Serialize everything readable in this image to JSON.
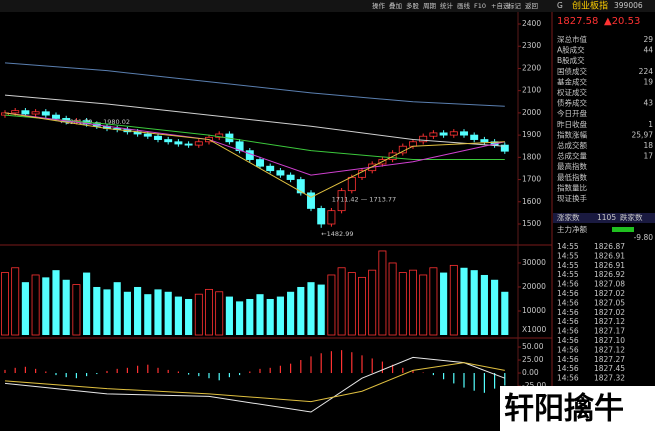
{
  "toolbar": [
    "操作",
    "叠加",
    "多股",
    "周期",
    "统计",
    "画线",
    "F10",
    "+自选",
    "标记",
    "返回"
  ],
  "header": {
    "badge": "G",
    "name": "创业板指",
    "code": "399006",
    "price": "1827.58",
    "change": "▲20.53"
  },
  "panel": {
    "rows": [
      {
        "label": "深总市值",
        "value": "29"
      },
      {
        "label": "A股成交",
        "value": "44"
      },
      {
        "label": "B股成交"
      },
      {
        "label": "国债成交",
        "value": "224"
      },
      {
        "label": "基金成交",
        "value": "19"
      },
      {
        "label": "权证成交"
      },
      {
        "label": "债券成交",
        "value": "43"
      },
      {
        "label": "今日开盘"
      },
      {
        "label": "昨日收盘",
        "value": "1"
      },
      {
        "label": "指数涨幅",
        "value": "25,97"
      },
      {
        "label": "总成交额",
        "value": "18"
      },
      {
        "label": "总成交量",
        "value": "17"
      },
      {
        "label": "最高指数"
      },
      {
        "label": "最低指数"
      },
      {
        "label": "指数量比"
      },
      {
        "label": "现证换手"
      }
    ],
    "rise_label": "涨家数",
    "rise_count": "1105",
    "fall_label": "跌家数",
    "flow_label": "主力净额",
    "flow_value": "-9.80"
  },
  "ticks": [
    [
      "14:55",
      "1826.87"
    ],
    [
      "14:55",
      "1826.91"
    ],
    [
      "14:55",
      "1826.91"
    ],
    [
      "14:55",
      "1826.92"
    ],
    [
      "14:56",
      "1827.08"
    ],
    [
      "14:56",
      "1827.02"
    ],
    [
      "14:56",
      "1827.05"
    ],
    [
      "14:56",
      "1827.02"
    ],
    [
      "14:56",
      "1827.12"
    ],
    [
      "14:56",
      "1827.17"
    ],
    [
      "14:56",
      "1827.10"
    ],
    [
      "14:56",
      "1827.12"
    ],
    [
      "14:56",
      "1827.27"
    ],
    [
      "14:56",
      "1827.45"
    ],
    [
      "14:56",
      "1827.32"
    ]
  ],
  "watermark": "轩阳擒牛",
  "chart_data": [
    {
      "type": "candlestick",
      "up_color": "#ff3232",
      "down_color": "#54ffff",
      "open": [
        1990,
        2000,
        2010,
        1995,
        2005,
        1990,
        1975,
        1960,
        1965,
        1950,
        1940,
        1930,
        1925,
        1915,
        1905,
        1895,
        1880,
        1870,
        1860,
        1855,
        1870,
        1890,
        1905,
        1870,
        1830,
        1790,
        1760,
        1740,
        1720,
        1700,
        1640,
        1570,
        1500,
        1560,
        1650,
        1710,
        1740,
        1770,
        1790,
        1820,
        1850,
        1870,
        1895,
        1910,
        1900,
        1915,
        1900,
        1880,
        1870,
        1855
      ],
      "high": [
        2012,
        2022,
        2022,
        2017,
        2017,
        2002,
        1987,
        1977,
        1977,
        1962,
        1952,
        1942,
        1937,
        1927,
        1917,
        1907,
        1892,
        1882,
        1872,
        1882,
        1902,
        1917,
        1917,
        1882,
        1842,
        1802,
        1772,
        1752,
        1732,
        1712,
        1652,
        1582,
        1572,
        1662,
        1722,
        1752,
        1782,
        1802,
        1832,
        1862,
        1882,
        1907,
        1922,
        1922,
        1927,
        1927,
        1912,
        1892,
        1882,
        1867
      ],
      "low": [
        1978,
        1988,
        1983,
        1983,
        1978,
        1963,
        1948,
        1948,
        1938,
        1928,
        1918,
        1913,
        1903,
        1893,
        1883,
        1868,
        1858,
        1848,
        1843,
        1843,
        1858,
        1878,
        1858,
        1818,
        1778,
        1748,
        1728,
        1708,
        1688,
        1628,
        1558,
        1482.99,
        1488,
        1548,
        1638,
        1698,
        1728,
        1758,
        1778,
        1808,
        1838,
        1858,
        1883,
        1888,
        1888,
        1888,
        1868,
        1858,
        1843,
        1815.58
      ],
      "close": [
        2000,
        2010,
        1995,
        2005,
        1990,
        1975,
        1960,
        1965,
        1950,
        1940,
        1930,
        1925,
        1915,
        1905,
        1895,
        1880,
        1870,
        1860,
        1855,
        1870,
        1890,
        1905,
        1870,
        1830,
        1790,
        1760,
        1740,
        1720,
        1700,
        1640,
        1570,
        1500,
        1560,
        1650,
        1710,
        1740,
        1770,
        1790,
        1820,
        1850,
        1870,
        1895,
        1910,
        1900,
        1915,
        1900,
        1880,
        1870,
        1855,
        1827.58
      ],
      "lines": [
        {
          "color": "#5a7fb0",
          "x": [
            0,
            10,
            20,
            30,
            40,
            49
          ],
          "values": [
            2225,
            2190,
            2140,
            2090,
            2050,
            2030
          ]
        },
        {
          "color": "#d0d0d0",
          "x": [
            0,
            10,
            20,
            30,
            40,
            49
          ],
          "values": [
            2080,
            2040,
            1990,
            1940,
            1880,
            1850
          ]
        },
        {
          "color": "#3cc83c",
          "x": [
            0,
            10,
            20,
            30,
            40,
            49
          ],
          "values": [
            1990,
            1950,
            1900,
            1830,
            1790,
            1790
          ]
        },
        {
          "color": "#d040d0",
          "x": [
            0,
            10,
            20,
            30,
            40,
            49
          ],
          "values": [
            2000,
            1940,
            1880,
            1720,
            1780,
            1870
          ]
        },
        {
          "color": "#e0c040",
          "x": [
            0,
            10,
            20,
            30,
            40,
            49
          ],
          "values": [
            2000,
            1930,
            1880,
            1620,
            1850,
            1870
          ]
        }
      ],
      "annotations": [
        "←1981.79 — 1980.02",
        "1711.42 — 1713.77",
        "←1482.99"
      ],
      "ylim": [
        1428,
        2454
      ],
      "yticks": [
        1500,
        1600,
        1700,
        1800,
        1900,
        2000,
        2100,
        2200,
        2300,
        2400
      ]
    },
    {
      "type": "bar",
      "unit": "X1000",
      "values": [
        26000,
        28000,
        22000,
        25000,
        24000,
        27000,
        23000,
        21000,
        26000,
        20000,
        19000,
        22000,
        18000,
        20000,
        17000,
        19000,
        18000,
        16000,
        15000,
        17000,
        19000,
        18000,
        16000,
        14000,
        15000,
        17000,
        15000,
        16000,
        18000,
        20000,
        22000,
        21000,
        25000,
        28000,
        26000,
        24000,
        27000,
        35000,
        30000,
        26000,
        27000,
        25000,
        28000,
        26000,
        29000,
        28000,
        27000,
        25000,
        23000,
        18000
      ],
      "ylim": [
        0,
        35400
      ],
      "yticks": [
        10000,
        20000,
        30000
      ]
    },
    {
      "type": "bar",
      "values": [
        6,
        10,
        12,
        8,
        3,
        -4,
        -8,
        -10,
        -6,
        -2,
        4,
        8,
        10,
        14,
        16,
        10,
        6,
        3,
        -3,
        -6,
        -10,
        -14,
        -8,
        -4,
        3,
        8,
        10,
        14,
        18,
        25,
        32,
        38,
        42,
        44,
        40,
        34,
        28,
        22,
        16,
        10,
        5,
        1,
        -4,
        -12,
        -20,
        -28,
        -34,
        -38,
        -30,
        -24
      ],
      "lines": [
        {
          "color": "#e8e8e8",
          "x": [
            0,
            10,
            20,
            30,
            35,
            40,
            45,
            49
          ],
          "values": [
            -20,
            -40,
            -45,
            -75,
            -10,
            30,
            20,
            -10
          ]
        },
        {
          "color": "#e0c040",
          "x": [
            0,
            10,
            20,
            30,
            35,
            40,
            45,
            49
          ],
          "values": [
            -15,
            -30,
            -40,
            -55,
            -35,
            5,
            20,
            5
          ]
        }
      ],
      "ylim": [
        -111.5,
        63.5
      ],
      "yticks": [
        {
          "value": 50,
          "label": "50.00"
        },
        {
          "value": 25,
          "label": "25.00"
        },
        {
          "value": 0,
          "label": "0.00"
        },
        {
          "value": -25,
          "label": "-25.00"
        }
      ]
    }
  ]
}
